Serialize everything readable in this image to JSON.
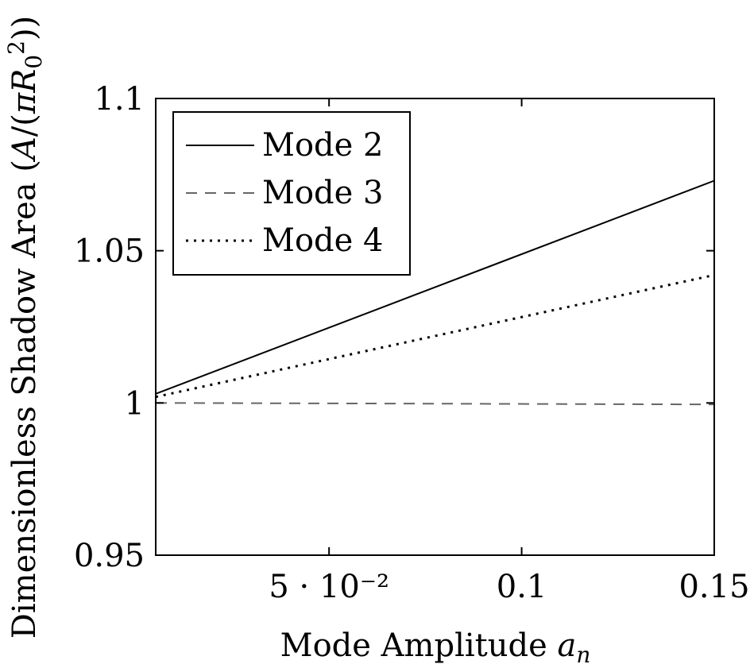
{
  "chart_data": {
    "type": "line",
    "xlabel": "Mode Amplitude a_n",
    "ylabel": "Dimensionless Shadow Area (A/(πR_0^2))",
    "xlim": [
      0.005,
      0.15
    ],
    "ylim": [
      0.95,
      1.1
    ],
    "x_ticks": [
      {
        "value": 0.05,
        "label": "5 · 10⁻²"
      },
      {
        "value": 0.1,
        "label": "0.1"
      },
      {
        "value": 0.15,
        "label": "0.15"
      }
    ],
    "y_ticks": [
      {
        "value": 0.95,
        "label": "0.95"
      },
      {
        "value": 1.0,
        "label": "1"
      },
      {
        "value": 1.05,
        "label": "1.05"
      },
      {
        "value": 1.1,
        "label": "1.1"
      }
    ],
    "grid": false,
    "legend_position": "top-left",
    "series": [
      {
        "name": "Mode 2",
        "style": "solid",
        "color": "#000000",
        "x": [
          0.005,
          0.15
        ],
        "y": [
          1.003,
          1.073
        ]
      },
      {
        "name": "Mode 3",
        "style": "dashed",
        "color": "#666666",
        "x": [
          0.005,
          0.15
        ],
        "y": [
          1.0,
          0.9995
        ]
      },
      {
        "name": "Mode 4",
        "style": "dotted",
        "color": "#000000",
        "x": [
          0.005,
          0.15
        ],
        "y": [
          1.002,
          1.042
        ]
      }
    ]
  }
}
